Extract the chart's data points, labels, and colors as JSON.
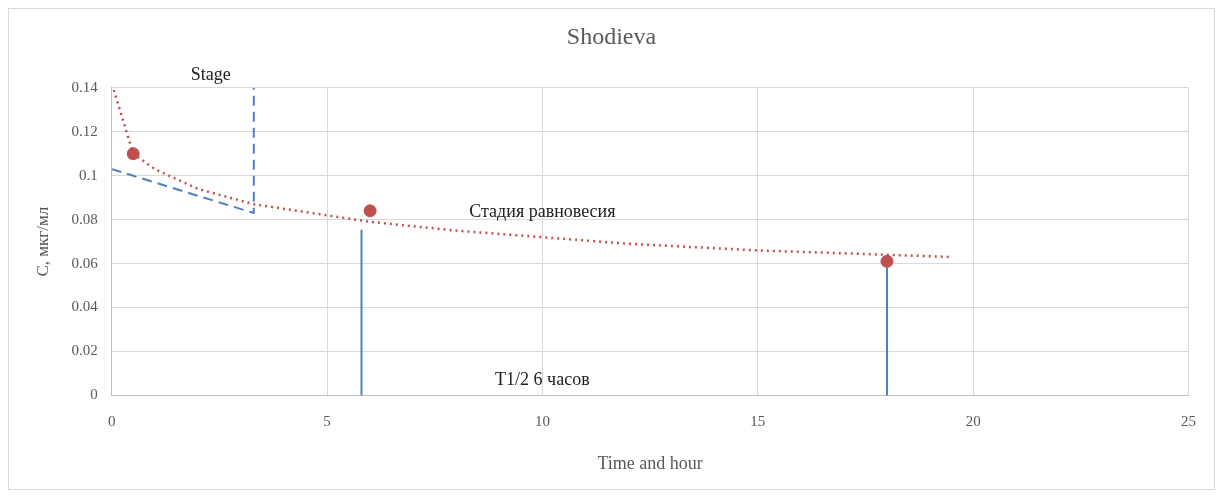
{
  "chart_data": {
    "type": "scatter",
    "title": "Shodieva",
    "xlabel": "Time and hour",
    "ylabel": "C, мкг/мл",
    "xlim": [
      0,
      25
    ],
    "xticks": [
      0,
      5,
      10,
      15,
      20,
      25
    ],
    "ylim": [
      0,
      0.14
    ],
    "yticks": [
      0,
      0.02,
      0.04,
      0.06,
      0.08,
      0.1,
      0.12,
      0.14
    ],
    "grid": true,
    "legend": false,
    "series": [
      {
        "type": "line",
        "color": "#c0504d",
        "line_style": "dotted",
        "marker": "none",
        "x": [
          0.05,
          0.5,
          1,
          2,
          3.3,
          6,
          8,
          10,
          12,
          15,
          18,
          19.5
        ],
        "values": [
          0.139,
          0.11,
          0.103,
          0.094,
          0.087,
          0.079,
          0.075,
          0.072,
          0.069,
          0.066,
          0.064,
          0.063
        ]
      },
      {
        "type": "line",
        "color": "#4f81bd",
        "line_style": "dashed",
        "marker": "none",
        "x": [
          0,
          3.3,
          3.3
        ],
        "values": [
          0.103,
          0.083,
          0.14
        ]
      },
      {
        "type": "line",
        "color": "#4f81bd",
        "line_style": "solid",
        "marker": "none",
        "x": [
          5.8,
          5.8
        ],
        "values": [
          0.075,
          0
        ]
      },
      {
        "type": "line",
        "color": "#4f81bd",
        "line_style": "solid",
        "marker": "none",
        "x": [
          18,
          18
        ],
        "values": [
          0.058,
          0
        ]
      },
      {
        "color": "#c0504d",
        "marker": "circle",
        "x": [
          0.5,
          6,
          18
        ],
        "values": [
          0.11,
          0.084,
          0.061
        ]
      }
    ],
    "annotations": [
      "Stage",
      "Стадия равновесия",
      "T1/2 6 часов"
    ]
  }
}
